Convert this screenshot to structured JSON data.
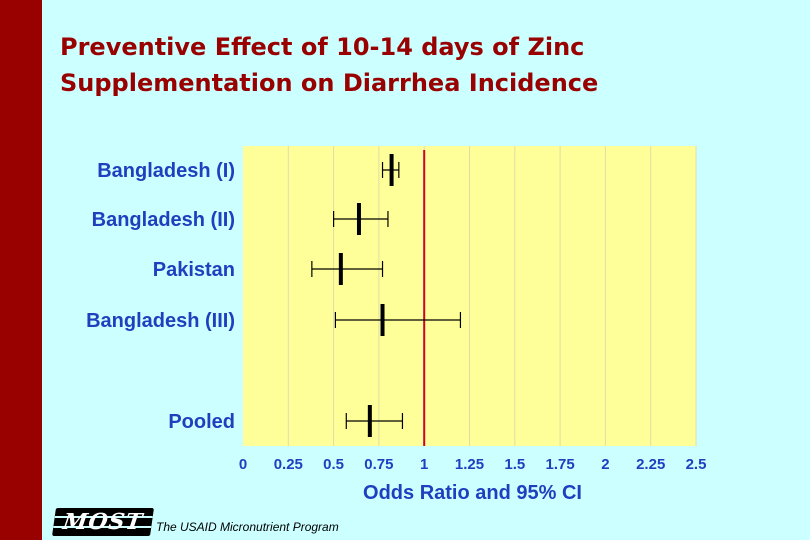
{
  "colors": {
    "background": "#ccffff",
    "left_bar": "#990000",
    "title": "#990000",
    "plot_bg": "#ffff99",
    "grid": "#e0dca8",
    "reference_line": "#cc0033",
    "labels": "#1f3fbf",
    "marks": "#000000"
  },
  "title": {
    "line1": "Preventive Effect of 10-14 days of Zinc",
    "line2": "Supplementation on Diarrhea Incidence"
  },
  "logo": {
    "text": "MOST"
  },
  "footer": {
    "text": "The USAID Micronutrient Program"
  },
  "chart_data": {
    "type": "forest",
    "title": "",
    "xlabel": "Odds Ratio and 95% CI",
    "ylabel": "",
    "xlim": [
      0,
      2.5
    ],
    "x_ticks": [
      0,
      0.25,
      0.5,
      0.75,
      1,
      1.25,
      1.5,
      1.75,
      2,
      2.25,
      2.5
    ],
    "x_tick_labels": [
      "0",
      "0.25",
      "0.5",
      "0.75",
      "1",
      "1.25",
      "1.5",
      "1.75",
      "2",
      "2.25",
      "2.5"
    ],
    "reference_line": 1,
    "grid": "vertical",
    "studies": [
      {
        "name": "Bangladesh (I)",
        "or": 0.82,
        "low": 0.77,
        "high": 0.86
      },
      {
        "name": "Bangladesh (II)",
        "or": 0.64,
        "low": 0.5,
        "high": 0.8
      },
      {
        "name": "Pakistan",
        "or": 0.54,
        "low": 0.38,
        "high": 0.77
      },
      {
        "name": "Bangladesh (III)",
        "or": 0.77,
        "low": 0.51,
        "high": 1.2
      },
      {
        "name": "Pooled",
        "or": 0.7,
        "low": 0.57,
        "high": 0.88
      }
    ]
  }
}
